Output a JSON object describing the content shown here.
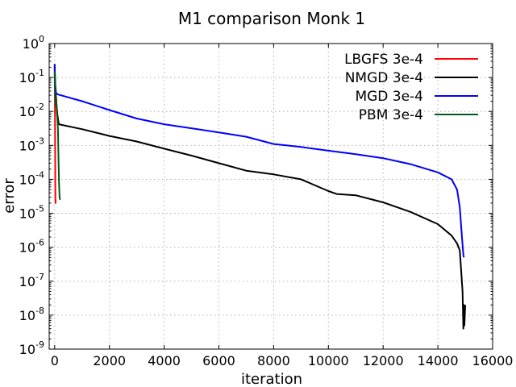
{
  "chart_data": {
    "type": "line",
    "title": "M1 comparison Monk 1",
    "xlabel": "iteration",
    "ylabel": "error",
    "xlim": [
      -200,
      16000
    ],
    "ylim": [
      1e-09,
      1
    ],
    "yscale": "log",
    "grid": true,
    "legend_position": "top-right",
    "x_ticks": [
      0,
      2000,
      4000,
      6000,
      8000,
      10000,
      12000,
      14000,
      16000
    ],
    "x_tick_labels": [
      "0",
      "2000",
      "4000",
      "6000",
      "8000",
      "10000",
      "12000",
      "14000",
      "16000"
    ],
    "y_ticks": [
      1e-09,
      1e-08,
      1e-07,
      1e-06,
      1e-05,
      0.0001,
      0.001,
      0.01,
      0.1,
      1
    ],
    "y_tick_labels": [
      {
        "base": "10",
        "exp": "-9"
      },
      {
        "base": "10",
        "exp": "-8"
      },
      {
        "base": "10",
        "exp": "-7"
      },
      {
        "base": "10",
        "exp": "-6"
      },
      {
        "base": "10",
        "exp": "-5"
      },
      {
        "base": "10",
        "exp": "-4"
      },
      {
        "base": "10",
        "exp": "-3"
      },
      {
        "base": "10",
        "exp": "-2"
      },
      {
        "base": "10",
        "exp": "-1"
      },
      {
        "base": "10",
        "exp": "0"
      }
    ],
    "series": [
      {
        "name": "LBGFS 3e-4",
        "color": "#ff0000",
        "x": [
          0,
          5,
          10,
          15,
          20,
          25,
          30,
          35
        ],
        "y": [
          0.25,
          0.05,
          0.02,
          0.003,
          0.0003,
          5e-05,
          2e-05,
          2.5e-05
        ]
      },
      {
        "name": "NMGD 3e-4",
        "color": "#000000",
        "x": [
          0,
          30,
          60,
          100,
          150,
          1000,
          2000,
          3000,
          4000,
          5000,
          6000,
          7000,
          8000,
          9000,
          10000,
          10300,
          11000,
          12000,
          13000,
          14000,
          14500,
          14700,
          14800,
          14850,
          14900,
          14930,
          14950,
          14970,
          15000
        ],
        "y": [
          0.2,
          0.04,
          0.02,
          0.008,
          0.0042,
          0.003,
          0.0019,
          0.0013,
          0.0008,
          0.0005,
          0.0003,
          0.00018,
          0.00014,
          0.0001,
          4.5e-05,
          3.7e-05,
          3.4e-05,
          2.1e-05,
          1.1e-05,
          4.8e-06,
          2.2e-06,
          1.3e-06,
          8e-07,
          2e-07,
          5e-08,
          4e-09,
          2e-08,
          5e-09,
          2e-08
        ]
      },
      {
        "name": "MGD 3e-4",
        "color": "#0000ff",
        "x": [
          0,
          20,
          50,
          100,
          1000,
          2000,
          3000,
          4000,
          5000,
          6000,
          7000,
          8000,
          9000,
          10000,
          11000,
          12000,
          13000,
          14000,
          14500,
          14700,
          14800,
          14850,
          14900,
          14930,
          14950
        ],
        "y": [
          0.25,
          0.06,
          0.035,
          0.032,
          0.02,
          0.011,
          0.0062,
          0.0042,
          0.0032,
          0.0024,
          0.0018,
          0.0011,
          0.0009,
          0.0007,
          0.00055,
          0.00042,
          0.00028,
          0.00016,
          0.0001,
          5e-05,
          1.5e-05,
          4e-06,
          1.2e-06,
          6e-07,
          5e-07
        ]
      },
      {
        "name": "PBM 3e-4",
        "color": "#005a1e",
        "x": [
          0,
          10,
          20,
          30,
          40,
          60,
          80,
          100,
          120,
          140,
          160,
          180,
          200
        ],
        "y": [
          0.15,
          0.05,
          0.025,
          0.02,
          0.015,
          0.02,
          0.01,
          0.006,
          0.003,
          0.0005,
          8e-05,
          3e-05,
          2.5e-05
        ]
      }
    ]
  }
}
